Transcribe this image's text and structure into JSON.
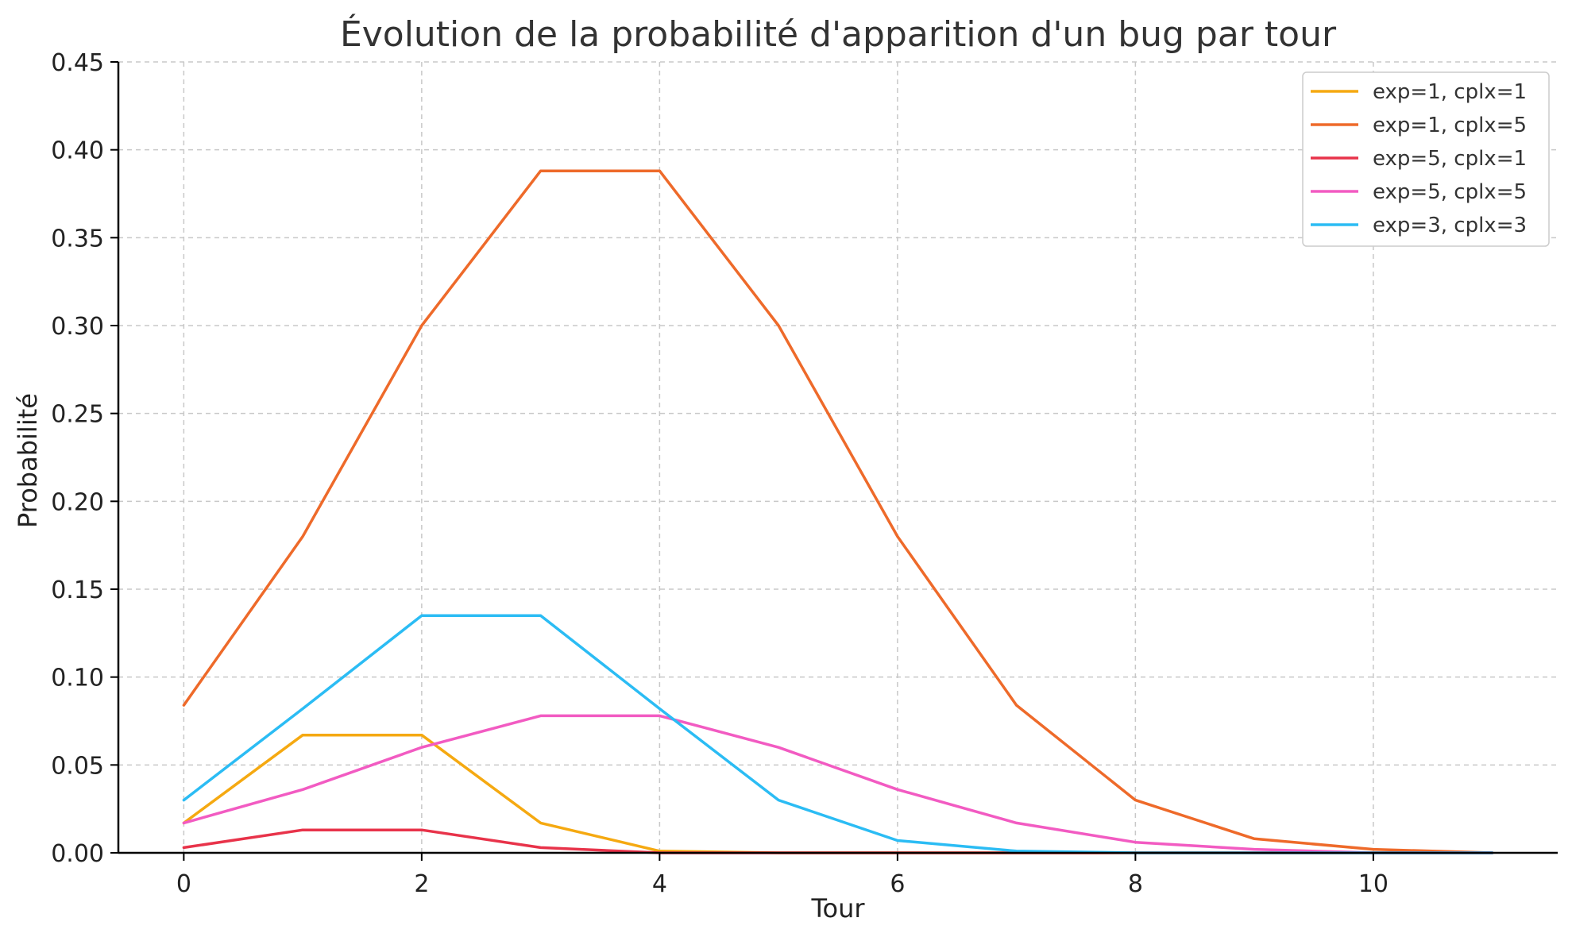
{
  "chart_data": {
    "type": "line",
    "title": "Évolution de la probabilité d'apparition d'un bug par tour",
    "xlabel": "Tour",
    "ylabel": "Probabilité",
    "xlim": [
      -0.55,
      11.55
    ],
    "ylim": [
      0,
      0.45
    ],
    "xticks": [
      0,
      2,
      4,
      6,
      8,
      10
    ],
    "xtick_labels": [
      "0",
      "2",
      "4",
      "6",
      "8",
      "10"
    ],
    "yticks": [
      0,
      0.05,
      0.1,
      0.15,
      0.2,
      0.25,
      0.3,
      0.35,
      0.4,
      0.45
    ],
    "ytick_labels": [
      "0.00",
      "0.05",
      "0.10",
      "0.15",
      "0.20",
      "0.25",
      "0.30",
      "0.35",
      "0.40",
      "0.45"
    ],
    "grid": true,
    "legend_position": "top-right",
    "x": [
      0,
      1,
      2,
      3,
      4,
      5,
      6,
      7,
      8,
      9,
      10,
      11
    ],
    "series": [
      {
        "name": "exp=1, cplx=1",
        "color": "#f5a911",
        "values": [
          0.017,
          0.067,
          0.067,
          0.017,
          0.001,
          0.0,
          0.0,
          0.0,
          0.0,
          0.0,
          0.0,
          0.0
        ]
      },
      {
        "name": "exp=1, cplx=5",
        "color": "#ee6a2a",
        "values": [
          0.084,
          0.18,
          0.3,
          0.388,
          0.388,
          0.3,
          0.18,
          0.084,
          0.03,
          0.008,
          0.002,
          0.0
        ]
      },
      {
        "name": "exp=5, cplx=1",
        "color": "#e8334a",
        "values": [
          0.003,
          0.013,
          0.013,
          0.003,
          0.0,
          0.0,
          0.0,
          0.0,
          0.0,
          0.0,
          0.0,
          0.0
        ]
      },
      {
        "name": "exp=5, cplx=5",
        "color": "#f25bc2",
        "values": [
          0.017,
          0.036,
          0.06,
          0.078,
          0.078,
          0.06,
          0.036,
          0.017,
          0.006,
          0.002,
          0.0,
          0.0
        ]
      },
      {
        "name": "exp=3, cplx=3",
        "color": "#2bbcf4",
        "values": [
          0.03,
          0.082,
          0.135,
          0.135,
          0.082,
          0.03,
          0.007,
          0.001,
          0.0,
          0.0,
          0.0,
          0.0
        ]
      }
    ]
  }
}
